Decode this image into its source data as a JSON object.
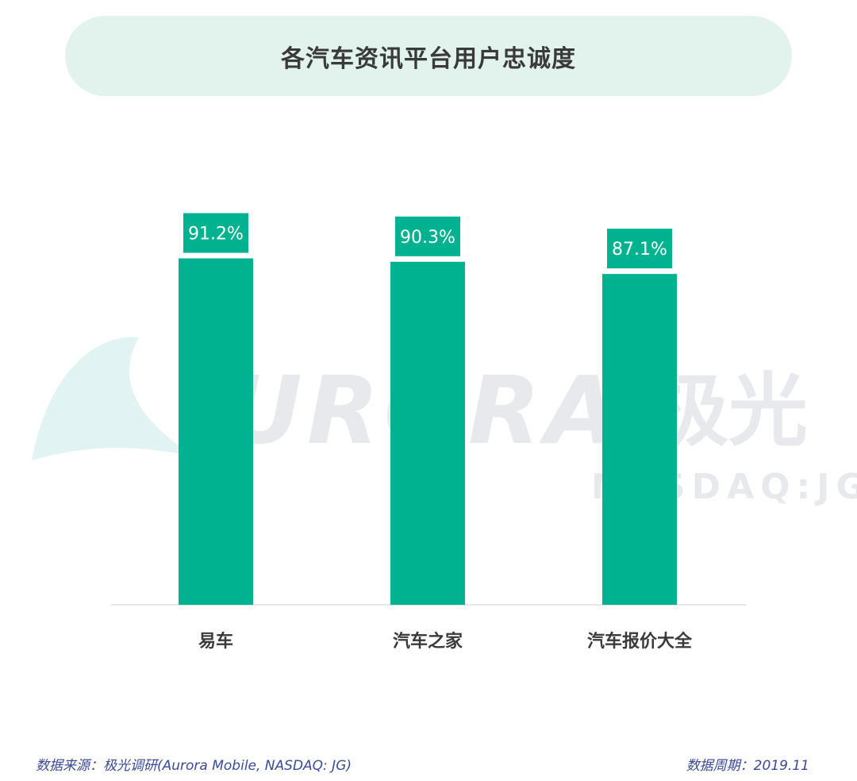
{
  "watermark": {
    "brand_text": "URORA",
    "brand_cn": "极光",
    "ticker": "NASDAQ:JG"
  },
  "footer": {
    "source": "数据来源：极光调研(Aurora Mobile, NASDAQ: JG)",
    "period": "数据周期：2019.11"
  },
  "colors": {
    "bar": "#00b28f",
    "label_bg": "#00b28f",
    "title_bg": "#e1f3ec",
    "footer_text": "#3b4a99"
  },
  "chart_data": {
    "type": "bar",
    "title": "各汽车资讯平台用户忠诚度",
    "categories": [
      "易车",
      "汽车之家",
      "汽车报价大全"
    ],
    "values": [
      91.2,
      90.3,
      87.1
    ],
    "data_labels": [
      "91.2%",
      "90.3%",
      "87.1%"
    ],
    "ylim": [
      0,
      100
    ],
    "grid": false,
    "legend": "none"
  }
}
